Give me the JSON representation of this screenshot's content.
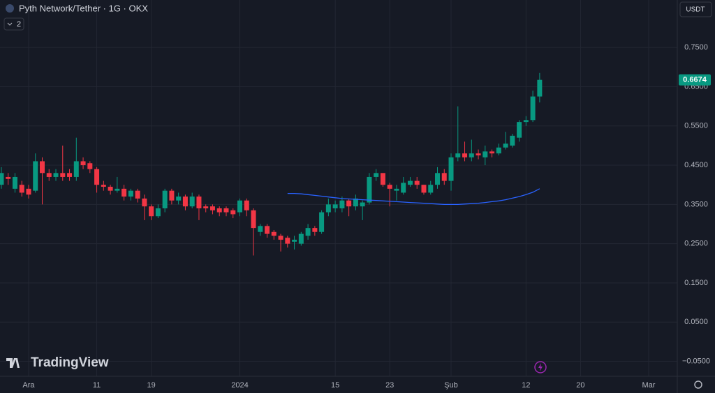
{
  "chart_data": {
    "type": "candlestick",
    "title": "Pyth Network/Tether · 1G · OKX",
    "indicator_count": "2",
    "currency": "USDT",
    "watermark": "TradingView",
    "up_color": "#089981",
    "down_color": "#f23645",
    "grid": true,
    "xlim": [
      -4.2,
      95.2
    ],
    "ylim": [
      -0.088,
      0.871
    ],
    "xticks": [
      {
        "value": 0,
        "label": "Ara"
      },
      {
        "value": 10,
        "label": "11"
      },
      {
        "value": 18,
        "label": "19"
      },
      {
        "value": 31,
        "label": "2024"
      },
      {
        "value": 45,
        "label": "15"
      },
      {
        "value": 53,
        "label": "23"
      },
      {
        "value": 62,
        "label": "Şub"
      },
      {
        "value": 73,
        "label": "12"
      },
      {
        "value": 81,
        "label": "20"
      },
      {
        "value": 91,
        "label": "Mar"
      }
    ],
    "yticks": [
      {
        "value": -0.05,
        "label": "−0.0500"
      },
      {
        "value": 0.05,
        "label": "0.0500"
      },
      {
        "value": 0.15,
        "label": "0.1500"
      },
      {
        "value": 0.25,
        "label": "0.2500"
      },
      {
        "value": 0.35,
        "label": "0.3500"
      },
      {
        "value": 0.45,
        "label": "0.4500"
      },
      {
        "value": 0.55,
        "label": "0.5500"
      },
      {
        "value": 0.65,
        "label": "0.6500"
      },
      {
        "value": 0.75,
        "label": "0.7500"
      }
    ],
    "x": [
      -4,
      -3,
      -2,
      -1,
      0,
      1,
      2,
      3,
      4,
      5,
      6,
      7,
      8,
      9,
      10,
      11,
      12,
      13,
      14,
      15,
      16,
      17,
      18,
      19,
      20,
      21,
      22,
      23,
      24,
      25,
      26,
      27,
      28,
      29,
      30,
      31,
      32,
      33,
      34,
      35,
      36,
      37,
      38,
      39,
      40,
      41,
      42,
      43,
      44,
      45,
      46,
      47,
      48,
      49,
      50,
      51,
      52,
      53,
      54,
      55,
      56,
      57,
      58,
      59,
      60,
      61,
      62,
      63,
      64,
      65,
      66,
      67,
      68,
      69,
      70,
      71,
      72,
      73,
      74,
      75
    ],
    "open": [
      0.4,
      0.42,
      0.39,
      0.4,
      0.39,
      0.385,
      0.46,
      0.43,
      0.42,
      0.43,
      0.43,
      0.42,
      0.46,
      0.455,
      0.44,
      0.4,
      0.395,
      0.385,
      0.39,
      0.37,
      0.385,
      0.365,
      0.345,
      0.32,
      0.34,
      0.385,
      0.36,
      0.37,
      0.345,
      0.37,
      0.345,
      0.345,
      0.34,
      0.34,
      0.335,
      0.33,
      0.36,
      0.335,
      0.28,
      0.295,
      0.28,
      0.27,
      0.265,
      0.255,
      0.25,
      0.27,
      0.29,
      0.28,
      0.33,
      0.34,
      0.34,
      0.36,
      0.345,
      0.345,
      0.355,
      0.42,
      0.43,
      0.4,
      0.385,
      0.38,
      0.4,
      0.41,
      0.4,
      0.38,
      0.4,
      0.43,
      0.41,
      0.47,
      0.48,
      0.47,
      0.48,
      0.47,
      0.485,
      0.48,
      0.495,
      0.5,
      0.52,
      0.56,
      0.565,
      0.625
    ],
    "high": [
      0.445,
      0.43,
      0.43,
      0.41,
      0.4,
      0.48,
      0.47,
      0.44,
      0.44,
      0.5,
      0.44,
      0.52,
      0.47,
      0.46,
      0.445,
      0.41,
      0.4,
      0.42,
      0.4,
      0.39,
      0.39,
      0.375,
      0.35,
      0.35,
      0.39,
      0.39,
      0.38,
      0.375,
      0.38,
      0.375,
      0.35,
      0.35,
      0.345,
      0.345,
      0.34,
      0.365,
      0.365,
      0.34,
      0.3,
      0.3,
      0.285,
      0.275,
      0.27,
      0.27,
      0.28,
      0.3,
      0.295,
      0.335,
      0.365,
      0.36,
      0.37,
      0.365,
      0.375,
      0.36,
      0.43,
      0.44,
      0.43,
      0.405,
      0.4,
      0.42,
      0.42,
      0.42,
      0.4,
      0.41,
      0.445,
      0.44,
      0.48,
      0.6,
      0.51,
      0.515,
      0.49,
      0.5,
      0.49,
      0.505,
      0.535,
      0.53,
      0.565,
      0.575,
      0.64,
      0.685
    ],
    "low": [
      0.39,
      0.4,
      0.38,
      0.37,
      0.365,
      0.38,
      0.35,
      0.41,
      0.41,
      0.41,
      0.41,
      0.41,
      0.44,
      0.43,
      0.38,
      0.385,
      0.375,
      0.38,
      0.36,
      0.36,
      0.355,
      0.31,
      0.31,
      0.315,
      0.33,
      0.35,
      0.35,
      0.335,
      0.34,
      0.31,
      0.33,
      0.325,
      0.32,
      0.32,
      0.315,
      0.32,
      0.32,
      0.22,
      0.27,
      0.265,
      0.26,
      0.23,
      0.24,
      0.235,
      0.245,
      0.26,
      0.27,
      0.275,
      0.32,
      0.33,
      0.33,
      0.32,
      0.335,
      0.31,
      0.35,
      0.41,
      0.395,
      0.345,
      0.36,
      0.375,
      0.395,
      0.39,
      0.375,
      0.375,
      0.39,
      0.4,
      0.385,
      0.46,
      0.46,
      0.46,
      0.465,
      0.45,
      0.47,
      0.475,
      0.49,
      0.495,
      0.51,
      0.55,
      0.56,
      0.61
    ],
    "close": [
      0.43,
      0.415,
      0.42,
      0.38,
      0.375,
      0.46,
      0.43,
      0.42,
      0.43,
      0.42,
      0.42,
      0.46,
      0.45,
      0.44,
      0.4,
      0.395,
      0.385,
      0.39,
      0.37,
      0.385,
      0.365,
      0.345,
      0.32,
      0.34,
      0.385,
      0.36,
      0.37,
      0.345,
      0.37,
      0.34,
      0.34,
      0.335,
      0.33,
      0.33,
      0.325,
      0.36,
      0.335,
      0.29,
      0.295,
      0.275,
      0.27,
      0.26,
      0.25,
      0.26,
      0.275,
      0.29,
      0.28,
      0.33,
      0.35,
      0.35,
      0.36,
      0.345,
      0.365,
      0.355,
      0.42,
      0.43,
      0.4,
      0.39,
      0.39,
      0.405,
      0.41,
      0.4,
      0.38,
      0.4,
      0.43,
      0.41,
      0.47,
      0.48,
      0.47,
      0.48,
      0.475,
      0.485,
      0.48,
      0.495,
      0.505,
      0.525,
      0.56,
      0.565,
      0.625,
      0.6674
    ],
    "ma": {
      "color": "#2962ff",
      "values": [
        null,
        null,
        null,
        null,
        null,
        null,
        null,
        null,
        null,
        null,
        null,
        null,
        null,
        null,
        null,
        null,
        null,
        null,
        null,
        null,
        null,
        null,
        null,
        null,
        null,
        null,
        null,
        null,
        null,
        null,
        null,
        null,
        null,
        null,
        null,
        null,
        null,
        null,
        null,
        null,
        null,
        null,
        0.378,
        0.378,
        0.377,
        0.375,
        0.373,
        0.371,
        0.369,
        0.367,
        0.365,
        0.364,
        0.363,
        0.362,
        0.361,
        0.36,
        0.359,
        0.358,
        0.357,
        0.356,
        0.355,
        0.354,
        0.353,
        0.352,
        0.351,
        0.35,
        0.35,
        0.35,
        0.351,
        0.352,
        0.353,
        0.355,
        0.357,
        0.359,
        0.362,
        0.366,
        0.37,
        0.375,
        0.381,
        0.39
      ]
    }
  }
}
